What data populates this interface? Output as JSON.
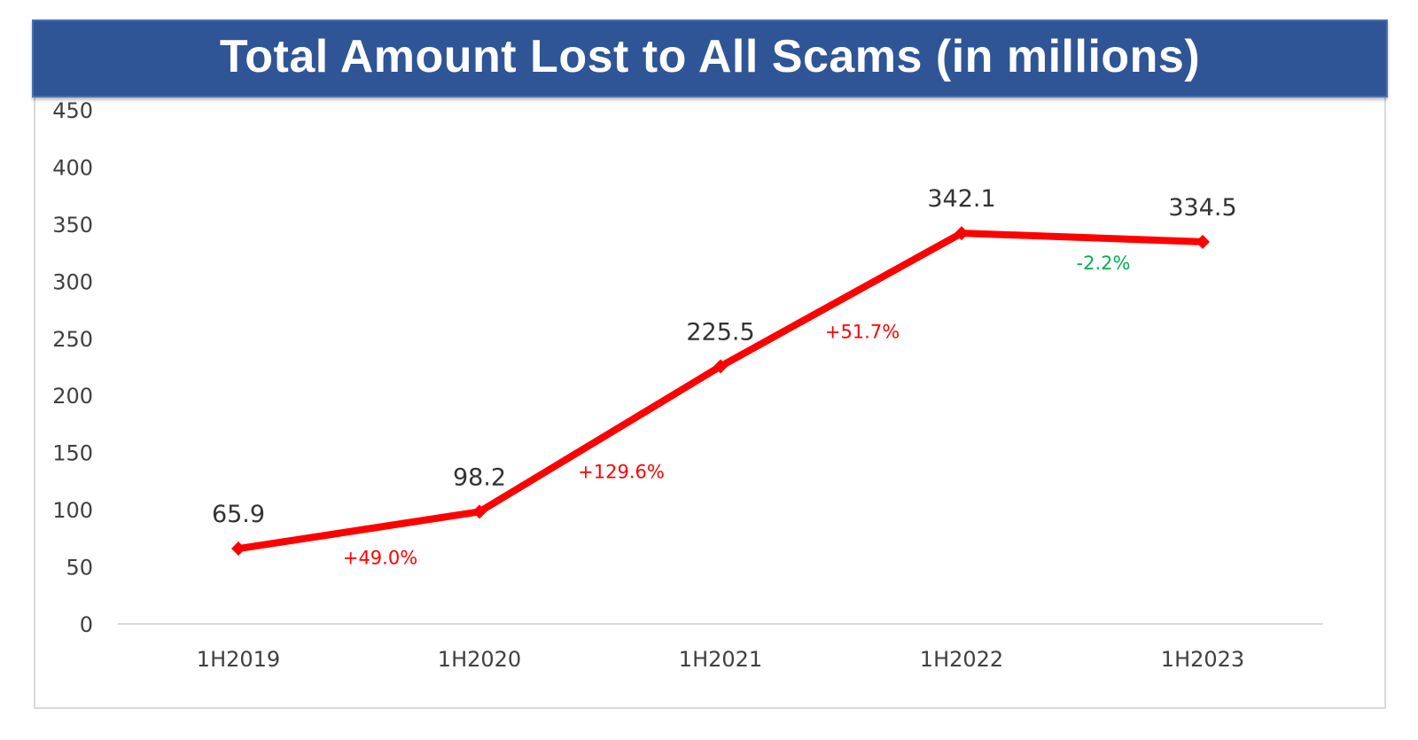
{
  "chart_data": {
    "type": "line",
    "title": "Total Amount Lost to All Scams (in millions)",
    "categories": [
      "1H2019",
      "1H2020",
      "1H2021",
      "1H2022",
      "1H2023"
    ],
    "values": [
      65.9,
      98.2,
      225.5,
      342.1,
      334.5
    ],
    "data_labels": [
      "65.9",
      "98.2",
      "225.5",
      "342.1",
      "334.5"
    ],
    "change_labels": [
      "+49.0%",
      "+129.6%",
      "+51.7%",
      "-2.2%"
    ],
    "change_colors": [
      "#ff0000",
      "#ff0000",
      "#ff0000",
      "#00b050"
    ],
    "ylim": [
      0,
      450
    ],
    "yticks": [
      0,
      50,
      100,
      150,
      200,
      250,
      300,
      350,
      400,
      450
    ],
    "grid": false,
    "legend": "none",
    "line_color": "#ff0000",
    "marker": "diamond"
  },
  "colors": {
    "banner": "#2f5597",
    "line": "#ff0000",
    "increase": "#ff0000",
    "decrease": "#00b050"
  }
}
